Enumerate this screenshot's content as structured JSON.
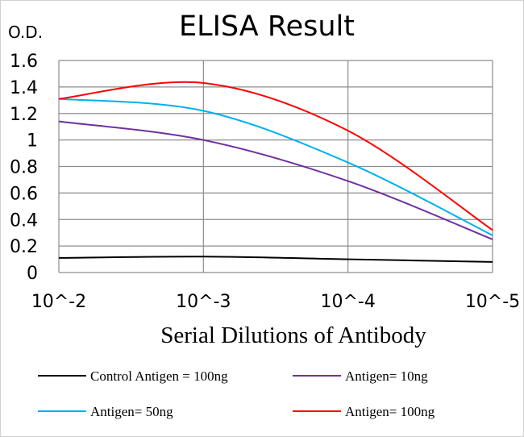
{
  "chart_data": {
    "type": "line",
    "title": "ELISA Result",
    "ylabel": "O.D.",
    "xlabel": "Serial Dilutions of Antibody",
    "categories": [
      "10^-2",
      "10^-3",
      "10^-4",
      "10^-5"
    ],
    "ylim": [
      0,
      1.6
    ],
    "yticks": [
      "0",
      "0.2",
      "0.4",
      "0.6",
      "0.8",
      "1",
      "1.2",
      "1.4",
      "1.6"
    ],
    "grid": true,
    "legend_position": "bottom",
    "series": [
      {
        "name": "Control Antigen = 100ng",
        "color": "#000000",
        "values": [
          0.11,
          0.12,
          0.1,
          0.08
        ]
      },
      {
        "name": "Antigen= 10ng",
        "color": "#7030A0",
        "values": [
          1.14,
          1.0,
          0.69,
          0.25
        ]
      },
      {
        "name": "Antigen= 50ng",
        "color": "#00B0F0",
        "values": [
          1.31,
          1.22,
          0.83,
          0.28
        ]
      },
      {
        "name": "Antigen= 100ng",
        "color": "#FF0000",
        "values": [
          1.31,
          1.43,
          1.07,
          0.32
        ]
      }
    ]
  }
}
